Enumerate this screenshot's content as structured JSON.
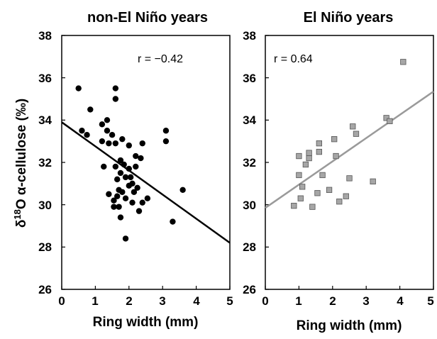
{
  "chart_data": [
    {
      "type": "scatter",
      "title": "non-El Niño years",
      "xlabel": "Ring width (mm)",
      "ylabel_main": "δ",
      "ylabel_sup": "18",
      "ylabel_rest": "O α-cellulose (‰)",
      "xlim": [
        0,
        5
      ],
      "ylim": [
        26,
        38
      ],
      "xticks": [
        "0",
        "1",
        "2",
        "3",
        "4",
        "5"
      ],
      "yticks": [
        "26",
        "28",
        "30",
        "32",
        "34",
        "36",
        "38"
      ],
      "annotation": "r = −0.42",
      "marker": "circle",
      "marker_color": "#000000",
      "trend_color": "#000000",
      "trendline": {
        "x": [
          0,
          5
        ],
        "y": [
          33.9,
          28.2
        ]
      },
      "points": [
        {
          "x": 0.5,
          "y": 35.5
        },
        {
          "x": 0.6,
          "y": 33.5
        },
        {
          "x": 0.75,
          "y": 33.3
        },
        {
          "x": 0.85,
          "y": 34.5
        },
        {
          "x": 1.2,
          "y": 33.8
        },
        {
          "x": 1.2,
          "y": 33.0
        },
        {
          "x": 1.25,
          "y": 31.8
        },
        {
          "x": 1.35,
          "y": 34.0
        },
        {
          "x": 1.35,
          "y": 33.5
        },
        {
          "x": 1.4,
          "y": 32.9
        },
        {
          "x": 1.4,
          "y": 30.5
        },
        {
          "x": 1.5,
          "y": 33.3
        },
        {
          "x": 1.55,
          "y": 30.2
        },
        {
          "x": 1.55,
          "y": 29.9
        },
        {
          "x": 1.6,
          "y": 35.5
        },
        {
          "x": 1.6,
          "y": 35.0
        },
        {
          "x": 1.6,
          "y": 32.9
        },
        {
          "x": 1.6,
          "y": 31.8
        },
        {
          "x": 1.65,
          "y": 31.2
        },
        {
          "x": 1.65,
          "y": 30.4
        },
        {
          "x": 1.7,
          "y": 30.7
        },
        {
          "x": 1.7,
          "y": 29.9
        },
        {
          "x": 1.75,
          "y": 32.1
        },
        {
          "x": 1.75,
          "y": 31.5
        },
        {
          "x": 1.8,
          "y": 33.1
        },
        {
          "x": 1.8,
          "y": 30.6
        },
        {
          "x": 1.75,
          "y": 29.4
        },
        {
          "x": 1.85,
          "y": 31.9
        },
        {
          "x": 1.9,
          "y": 31.3
        },
        {
          "x": 1.9,
          "y": 30.3
        },
        {
          "x": 1.9,
          "y": 28.4
        },
        {
          "x": 2.0,
          "y": 32.8
        },
        {
          "x": 2.0,
          "y": 31.7
        },
        {
          "x": 2.0,
          "y": 30.9
        },
        {
          "x": 2.05,
          "y": 31.3
        },
        {
          "x": 2.1,
          "y": 31.0
        },
        {
          "x": 2.1,
          "y": 30.1
        },
        {
          "x": 2.15,
          "y": 30.6
        },
        {
          "x": 2.2,
          "y": 32.3
        },
        {
          "x": 2.2,
          "y": 31.8
        },
        {
          "x": 2.25,
          "y": 30.8
        },
        {
          "x": 2.3,
          "y": 29.7
        },
        {
          "x": 2.35,
          "y": 32.2
        },
        {
          "x": 2.4,
          "y": 32.9
        },
        {
          "x": 2.4,
          "y": 30.1
        },
        {
          "x": 2.55,
          "y": 30.3
        },
        {
          "x": 3.1,
          "y": 33.5
        },
        {
          "x": 3.1,
          "y": 33.0
        },
        {
          "x": 3.3,
          "y": 29.2
        },
        {
          "x": 3.6,
          "y": 30.7
        }
      ]
    },
    {
      "type": "scatter",
      "title": "El Niño years",
      "xlabel": "Ring width (mm)",
      "xlim": [
        0,
        5
      ],
      "ylim": [
        26,
        38
      ],
      "xticks": [
        "0",
        "1",
        "2",
        "3",
        "4",
        "5"
      ],
      "yticks": [
        "26",
        "28",
        "30",
        "32",
        "34",
        "36",
        "38"
      ],
      "annotation": "r = 0.64",
      "marker": "square",
      "marker_color": "#a6a6a6",
      "trend_color": "#9a9a9a",
      "trendline": {
        "x": [
          0,
          5
        ],
        "y": [
          29.85,
          35.35
        ]
      },
      "points": [
        {
          "x": 0.85,
          "y": 29.95
        },
        {
          "x": 1.0,
          "y": 32.3
        },
        {
          "x": 1.0,
          "y": 31.4
        },
        {
          "x": 1.05,
          "y": 30.3
        },
        {
          "x": 1.1,
          "y": 30.85
        },
        {
          "x": 1.2,
          "y": 31.9
        },
        {
          "x": 1.3,
          "y": 32.2
        },
        {
          "x": 1.3,
          "y": 32.45
        },
        {
          "x": 1.4,
          "y": 29.9
        },
        {
          "x": 1.55,
          "y": 30.55
        },
        {
          "x": 1.6,
          "y": 32.5
        },
        {
          "x": 1.6,
          "y": 32.9
        },
        {
          "x": 1.7,
          "y": 31.4
        },
        {
          "x": 1.9,
          "y": 30.7
        },
        {
          "x": 2.05,
          "y": 33.1
        },
        {
          "x": 2.1,
          "y": 32.3
        },
        {
          "x": 2.2,
          "y": 30.15
        },
        {
          "x": 2.4,
          "y": 30.4
        },
        {
          "x": 2.5,
          "y": 31.25
        },
        {
          "x": 2.6,
          "y": 33.7
        },
        {
          "x": 2.7,
          "y": 33.35
        },
        {
          "x": 3.2,
          "y": 31.1
        },
        {
          "x": 3.6,
          "y": 34.1
        },
        {
          "x": 3.7,
          "y": 33.95
        },
        {
          "x": 4.1,
          "y": 36.75
        }
      ]
    }
  ]
}
